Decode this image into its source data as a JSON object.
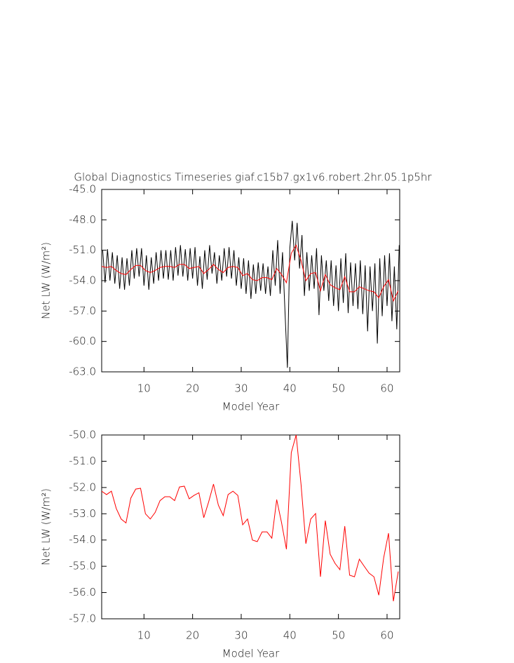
{
  "chart_data": [
    {
      "type": "line",
      "title": "Global Diagnostics Timeseries giaf.c15b7.gx1v6.robert.2hr.05.1p5hr",
      "xlabel": "Model Year",
      "ylabel": "Net LW (W/m²)",
      "xlim": [
        1.3,
        62.6
      ],
      "xticks": [
        10,
        20,
        30,
        40,
        50,
        60
      ],
      "ylim": [
        -63,
        -45
      ],
      "yticks": [
        {
          "value": -45,
          "label": "-45.0"
        },
        {
          "value": -48,
          "label": "-48.0"
        },
        {
          "value": -51,
          "label": "-51.0"
        },
        {
          "value": -54,
          "label": "-54.0"
        },
        {
          "value": -57,
          "label": "-57.0"
        },
        {
          "value": -60,
          "label": "-60.0"
        },
        {
          "value": -63,
          "label": "-63.0"
        }
      ],
      "grid": false,
      "series": [
        {
          "color": "#000000",
          "x": [
            1.5,
            2,
            2.5,
            3,
            3.5,
            4,
            4.5,
            5,
            5.5,
            6,
            6.5,
            7,
            7.5,
            8,
            8.5,
            9,
            9.5,
            10,
            10.5,
            11,
            11.5,
            12,
            12.5,
            13,
            13.5,
            14,
            14.5,
            15,
            15.5,
            16,
            16.5,
            17,
            17.5,
            18,
            18.5,
            19,
            19.5,
            20,
            20.5,
            21,
            21.5,
            22,
            22.5,
            23,
            23.5,
            24,
            24.5,
            25,
            25.5,
            26,
            26.5,
            27,
            27.5,
            28,
            28.5,
            29,
            29.5,
            30,
            30.5,
            31,
            31.5,
            32,
            32.5,
            33,
            33.5,
            34,
            34.5,
            35,
            35.5,
            36,
            36.5,
            37,
            37.5,
            38,
            38.5,
            39,
            39.5,
            40,
            40.5,
            41,
            41.5,
            42,
            42.5,
            43,
            43.5,
            44,
            44.5,
            45,
            45.5,
            46,
            46.5,
            47,
            47.5,
            48,
            48.5,
            49,
            49.5,
            50,
            50.5,
            51,
            51.5,
            52,
            52.5,
            53,
            53.5,
            54,
            54.5,
            55,
            55.5,
            56,
            56.5,
            57,
            57.5,
            58,
            58.5,
            59,
            59.5,
            60,
            60.5,
            61,
            61.5,
            62,
            62.5
          ],
          "values": [
            -51.0,
            -54.2,
            -50.9,
            -54.0,
            -51.2,
            -54.3,
            -51.5,
            -54.8,
            -51.7,
            -54.9,
            -51.8,
            -54.5,
            -51.0,
            -53.8,
            -50.8,
            -53.6,
            -50.8,
            -54.5,
            -51.5,
            -54.9,
            -51.7,
            -54.3,
            -51.2,
            -54.0,
            -51.0,
            -53.8,
            -51.0,
            -53.9,
            -51.0,
            -54.0,
            -50.7,
            -53.5,
            -50.5,
            -53.6,
            -50.9,
            -54.0,
            -50.8,
            -53.8,
            -50.7,
            -54.5,
            -51.6,
            -54.8,
            -51.0,
            -53.9,
            -50.5,
            -53.3,
            -51.2,
            -54.3,
            -51.5,
            -54.0,
            -50.8,
            -53.6,
            -50.7,
            -53.8,
            -51.0,
            -54.5,
            -51.7,
            -54.8,
            -51.8,
            -55.3,
            -52.0,
            -55.8,
            -52.4,
            -55.3,
            -52.2,
            -55.0,
            -52.3,
            -55.3,
            -52.6,
            -55.5,
            -51.0,
            -54.5,
            -50.0,
            -55.3,
            -51.2,
            -57.0,
            -62.6,
            -50.8,
            -48.1,
            -52.0,
            -48.3,
            -52.8,
            -49.5,
            -55.5,
            -51.2,
            -55.0,
            -51.5,
            -54.8,
            -50.8,
            -57.4,
            -51.5,
            -55.0,
            -52.0,
            -56.0,
            -52.0,
            -56.5,
            -52.5,
            -57.0,
            -51.8,
            -56.2,
            -51.3,
            -57.2,
            -52.2,
            -56.5,
            -52.3,
            -56.8,
            -52.0,
            -57.3,
            -52.5,
            -59.0,
            -52.6,
            -57.0,
            -52.3,
            -60.2,
            -51.8,
            -57.5,
            -51.5,
            -56.5,
            -51.3,
            -58.0,
            -52.6,
            -58.8,
            -50.5
          ]
        },
        {
          "color": "#ff0000",
          "x": [
            1.3,
            2.3,
            3.3,
            4.3,
            5.3,
            6.3,
            7.3,
            8.3,
            9.3,
            10.3,
            11.3,
            12.3,
            13.3,
            14.3,
            15.3,
            16.3,
            17.3,
            18.3,
            19.3,
            20.3,
            21.3,
            22.3,
            23.3,
            24.3,
            25.3,
            26.3,
            27.3,
            28.3,
            29.3,
            30.3,
            31.3,
            32.3,
            33.3,
            34.3,
            35.3,
            36.3,
            37.3,
            38.3,
            39.3,
            40.3,
            41.3,
            42.3,
            43.3,
            44.3,
            45.3,
            46.3,
            47.3,
            48.3,
            49.3,
            50.3,
            51.3,
            52.3,
            53.3,
            54.3,
            55.3,
            56.3,
            57.3,
            58.3,
            59.3,
            60.3,
            61.3,
            62.3
          ],
          "values": [
            -52.6,
            -52.7,
            -52.6,
            -53.0,
            -53.3,
            -53.4,
            -52.9,
            -52.5,
            -52.5,
            -53.0,
            -53.2,
            -53.0,
            -52.7,
            -52.6,
            -52.6,
            -52.7,
            -52.4,
            -52.4,
            -52.8,
            -52.7,
            -52.6,
            -53.3,
            -52.9,
            -52.4,
            -52.9,
            -53.2,
            -52.7,
            -52.6,
            -52.7,
            -53.5,
            -53.3,
            -53.9,
            -54.0,
            -53.7,
            -53.7,
            -53.9,
            -52.8,
            -53.4,
            -54.2,
            -51.3,
            -50.5,
            -52.0,
            -54.0,
            -53.3,
            -53.2,
            -55.0,
            -53.4,
            -54.4,
            -54.7,
            -54.9,
            -53.6,
            -55.1,
            -55.1,
            -54.6,
            -54.8,
            -55.0,
            -55.1,
            -55.7,
            -54.6,
            -53.9,
            -56.0,
            -55.0
          ]
        }
      ]
    },
    {
      "type": "line",
      "xlabel": "Model Year",
      "ylabel": "Net LW (W/m²)",
      "xlim": [
        1.3,
        62.6
      ],
      "xticks": [
        10,
        20,
        30,
        40,
        50,
        60
      ],
      "ylim": [
        -57,
        -50
      ],
      "yticks": [
        {
          "value": -50,
          "label": "-50.0"
        },
        {
          "value": -51,
          "label": "-51.0"
        },
        {
          "value": -52,
          "label": "-52.0"
        },
        {
          "value": -53,
          "label": "-53.0"
        },
        {
          "value": -54,
          "label": "-54.0"
        },
        {
          "value": -55,
          "label": "-55.0"
        },
        {
          "value": -56,
          "label": "-56.0"
        },
        {
          "value": -57,
          "label": "-57.0"
        }
      ],
      "grid": false,
      "series": [
        {
          "color": "#ff0000",
          "x": [
            1.3,
            2.3,
            3.3,
            4.3,
            5.3,
            6.3,
            7.3,
            8.3,
            9.3,
            10.3,
            11.3,
            12.3,
            13.3,
            14.3,
            15.3,
            16.3,
            17.3,
            18.3,
            19.3,
            20.3,
            21.3,
            22.3,
            23.3,
            24.3,
            25.3,
            26.3,
            27.3,
            28.3,
            29.3,
            30.3,
            31.3,
            32.3,
            33.3,
            34.3,
            35.3,
            36.3,
            37.3,
            38.3,
            39.3,
            40.3,
            41.3,
            42.3,
            43.3,
            44.3,
            45.3,
            46.3,
            47.3,
            48.3,
            49.3,
            50.3,
            51.3,
            52.3,
            53.3,
            54.3,
            55.3,
            56.3,
            57.3,
            58.3,
            59.3,
            60.3,
            61.3,
            62.3
          ],
          "values": [
            -52.14,
            -52.27,
            -52.14,
            -52.8,
            -53.2,
            -53.35,
            -52.4,
            -52.06,
            -52.03,
            -53.0,
            -53.2,
            -52.95,
            -52.5,
            -52.35,
            -52.35,
            -52.5,
            -51.98,
            -51.95,
            -52.43,
            -52.3,
            -52.2,
            -53.15,
            -52.55,
            -51.87,
            -52.67,
            -53.07,
            -52.27,
            -52.14,
            -52.3,
            -53.42,
            -53.2,
            -54.0,
            -54.06,
            -53.69,
            -53.69,
            -53.93,
            -52.46,
            -53.34,
            -54.35,
            -50.67,
            -50.0,
            -51.87,
            -54.14,
            -53.2,
            -52.99,
            -55.4,
            -53.26,
            -54.54,
            -54.89,
            -55.13,
            -53.47,
            -55.34,
            -55.4,
            -54.73,
            -55.0,
            -55.26,
            -55.4,
            -56.1,
            -54.68,
            -53.74,
            -56.33,
            -55.2
          ]
        }
      ]
    }
  ]
}
